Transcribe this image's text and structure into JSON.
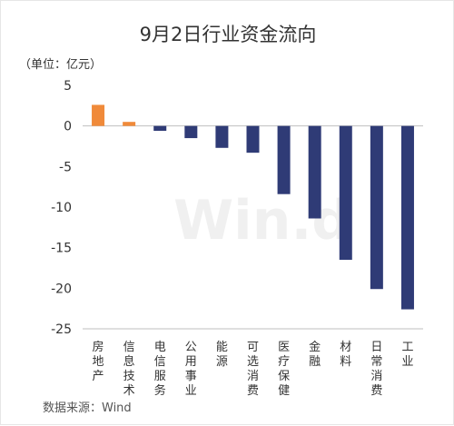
{
  "watermark": "Win.d",
  "chart_data": {
    "type": "bar",
    "title": "9月2日行业资金流向",
    "unit": "（单位：亿元）",
    "source": "数据来源：Wind",
    "ylim": [
      -25,
      5
    ],
    "yticks": [
      5,
      0,
      -5,
      -10,
      -15,
      -20,
      -25
    ],
    "grid": false,
    "colors": {
      "positive": "#f08a3a",
      "negative": "#2f3b76"
    },
    "categories": [
      "房地产",
      "信息技术",
      "电信服务",
      "公用事业",
      "能源",
      "可选消费",
      "医疗保健",
      "金融",
      "材料",
      "日常消费",
      "工业"
    ],
    "values": [
      2.6,
      0.5,
      -0.6,
      -1.5,
      -2.7,
      -3.3,
      -8.4,
      -11.4,
      -16.5,
      -20.1,
      -22.6
    ]
  }
}
